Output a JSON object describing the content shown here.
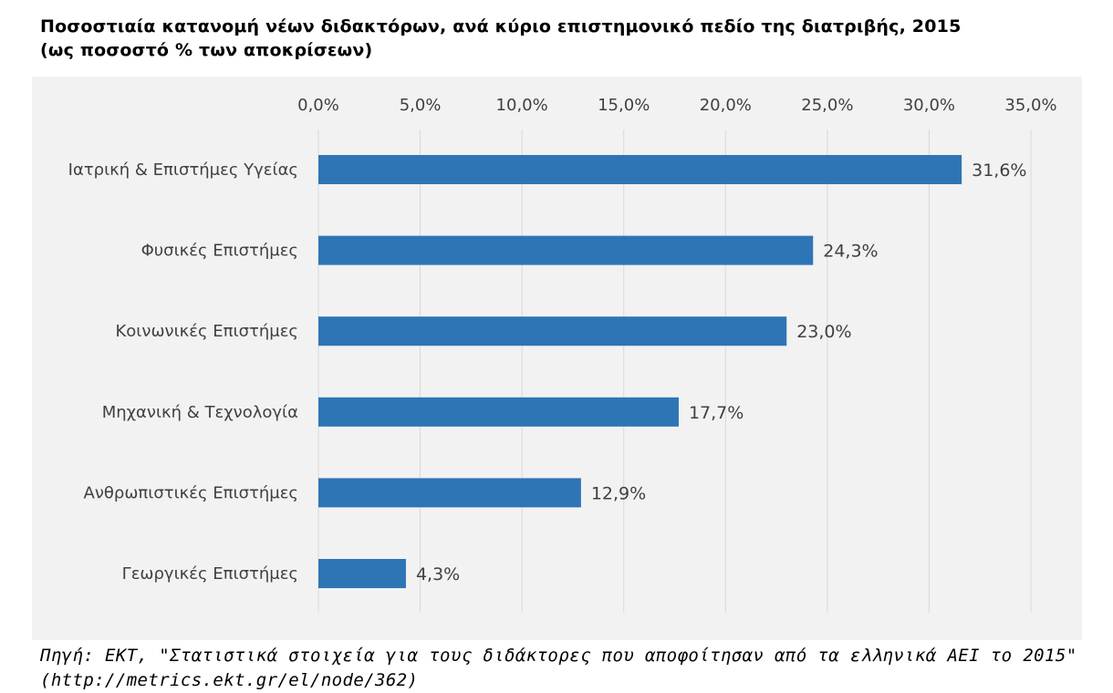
{
  "title_line1": "Ποσοστιαία κατανομή νέων διδακτόρων, ανά κύριο επιστημονικό πεδίο της διατριβής, 2015",
  "title_line2": "(ως ποσοστό % των αποκρίσεων)",
  "source_line1": "Πηγή: ΕΚΤ, \"Στατιστικά στοιχεία για τους διδάκτορες που αποφοίτησαν από τα ελληνικά ΑΕΙ το 2015\"",
  "source_line2": "(http://metrics.ekt.gr/el/node/362)",
  "colors": {
    "bar": "#2e75b6",
    "panel": "#f2f2f2",
    "grid": "#d9d9d9",
    "text": "#404040"
  },
  "chart_data": {
    "type": "bar",
    "orientation": "horizontal",
    "title": "Ποσοστιαία κατανομή νέων διδακτόρων, ανά κύριο επιστημονικό πεδίο της διατριβής, 2015",
    "subtitle": "(ως ποσοστό % των αποκρίσεων)",
    "categories": [
      "Ιατρική & Επιστήμες Υγείας",
      "Φυσικές Επιστήμες",
      "Κοινωνικές Επιστήμες",
      "Μηχανική & Τεχνολογία",
      "Ανθρωπιστικές Επιστήμες",
      "Γεωργικές Επιστήμες"
    ],
    "values": [
      31.6,
      24.3,
      23.0,
      17.7,
      12.9,
      4.3
    ],
    "data_labels": [
      "31,6%",
      "24,3%",
      "23,0%",
      "17,7%",
      "12,9%",
      "4,3%"
    ],
    "x_ticks": [
      0,
      5,
      10,
      15,
      20,
      25,
      30,
      35
    ],
    "x_tick_labels": [
      "0,0%",
      "5,0%",
      "10,0%",
      "15,0%",
      "20,0%",
      "25,0%",
      "30,0%",
      "35,0%"
    ],
    "xlim": [
      0,
      35
    ],
    "x_axis_position": "top",
    "grid": true,
    "legend": "none",
    "xlabel": "",
    "ylabel": ""
  }
}
